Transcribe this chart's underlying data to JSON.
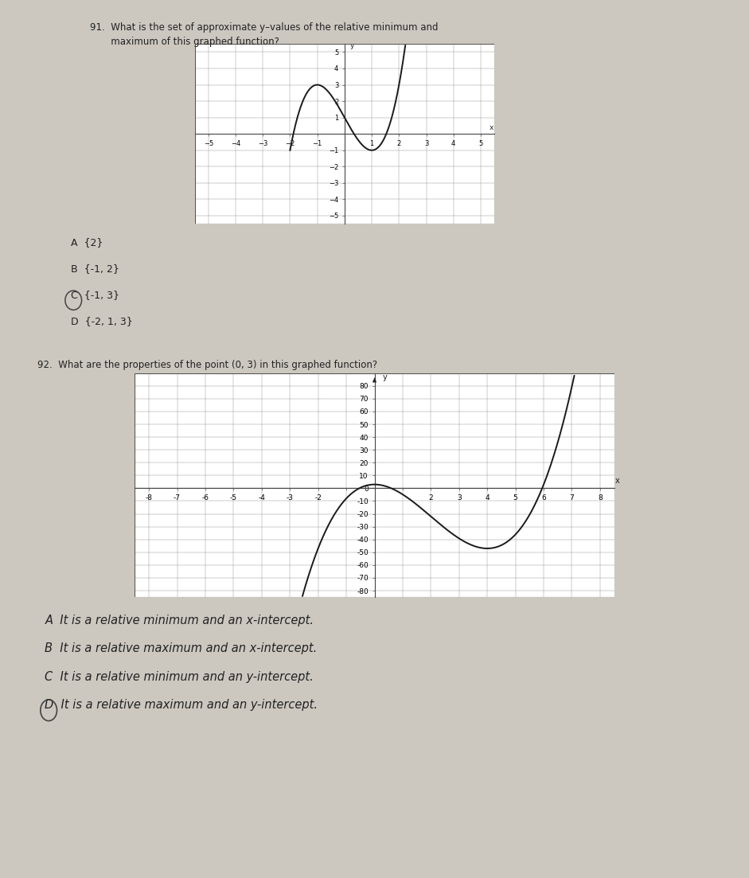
{
  "bg_color": "#ccc8c0",
  "q91": {
    "title_line1": "91.  What is the set of approximate y–values of the relative minimum and",
    "title_line2": "       maximum of this graphed function?",
    "title_fontsize": 8.5,
    "xlim": [
      -5.5,
      5.5
    ],
    "ylim": [
      -5.5,
      5.5
    ],
    "xticks": [
      -5,
      -4,
      -3,
      -2,
      -1,
      1,
      2,
      3,
      4,
      5
    ],
    "yticks": [
      -5,
      -4,
      -3,
      -2,
      -1,
      1,
      2,
      3,
      4,
      5
    ],
    "tick_fontsize": 6,
    "curve_color": "#1a1a1a",
    "curve_lw": 1.4,
    "grid_color": "#999999",
    "grid_lw": 0.35,
    "answers": [
      "A  {2}",
      "B  {-1, 2}",
      "C  {-1, 3}",
      "D  {-2, 1, 3}"
    ],
    "answer_fontsize": 9,
    "circled": 2
  },
  "q92": {
    "title": "92.  What are the properties of the point (0, 3) in this graphed function?",
    "title_fontsize": 8.5,
    "xlim": [
      -8.5,
      8.5
    ],
    "ylim": [
      -85,
      90
    ],
    "tick_fontsize": 6.5,
    "curve_color": "#1a1a1a",
    "curve_lw": 1.4,
    "grid_color": "#999999",
    "grid_lw": 0.35,
    "answers": [
      "A  It is a relative minimum and an x-intercept.",
      "B  It is a relative maximum and an x-intercept.",
      "C  It is a relative minimum and an y-intercept.",
      "D  It is a relative maximum and an y-intercept."
    ],
    "answer_fontsize": 10.5,
    "circled": 3
  }
}
